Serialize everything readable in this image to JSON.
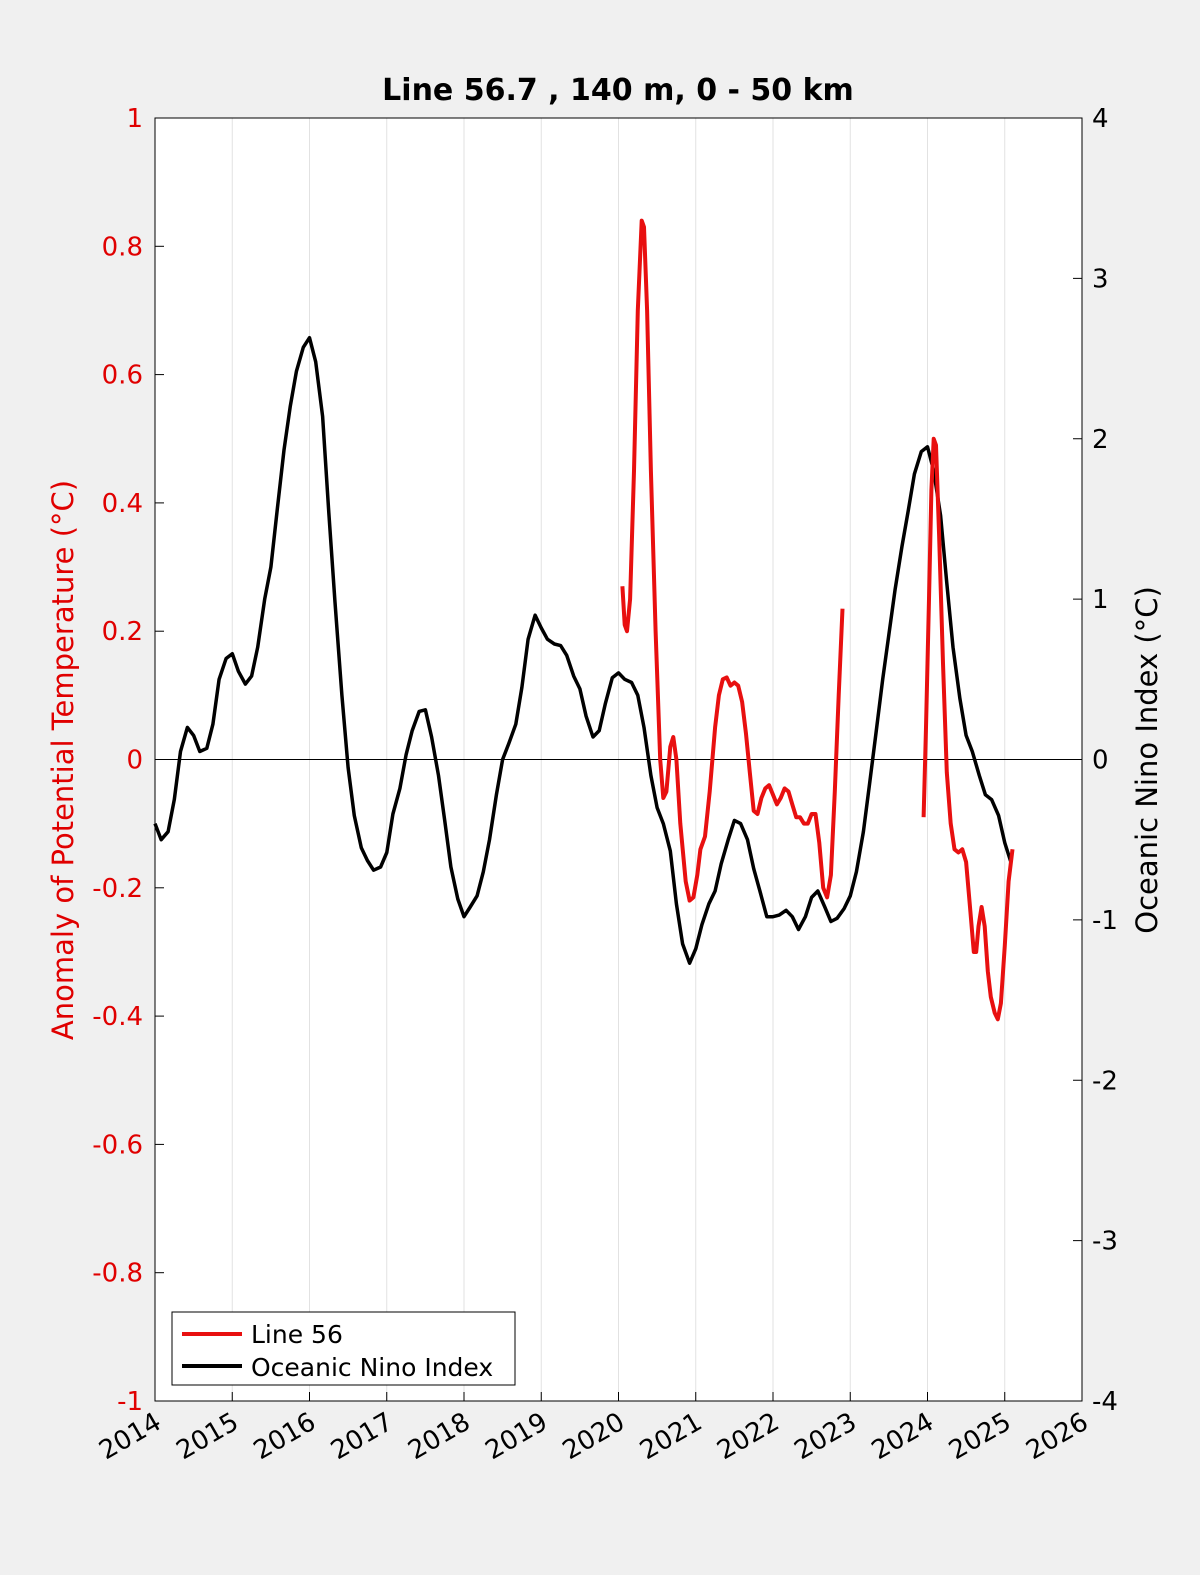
{
  "colors": {
    "background": "#f0f0f0",
    "plot_background": "#ffffff",
    "left_axis": "#e00000",
    "right_axis": "#000000",
    "line56": "#e81010",
    "oni": "#000000",
    "grid": "#e2e2e2"
  },
  "chart_data": {
    "type": "line",
    "title": "Line 56.7 , 140 m, 0 - 50 km",
    "xlabel": "",
    "ylabel_left": "Anomaly of Potential Temperature (°C)",
    "ylabel_right": "Oceanic Nino Index (°C)",
    "x_range": [
      2014,
      2026
    ],
    "x_ticks": [
      2014,
      2015,
      2016,
      2017,
      2018,
      2019,
      2020,
      2021,
      2022,
      2023,
      2024,
      2025,
      2026
    ],
    "y_left_range": [
      -1,
      1
    ],
    "y_left_ticks": [
      -1,
      -0.8,
      -0.6,
      -0.4,
      -0.2,
      0,
      0.2,
      0.4,
      0.6,
      0.8,
      1
    ],
    "y_left_tick_labels": [
      "-1",
      "-0.8",
      "-0.6",
      "-0.4",
      "-0.2",
      "0",
      "0.2",
      "0.4",
      "0.6",
      "0.8",
      "1"
    ],
    "y_right_range": [
      -4,
      4
    ],
    "y_right_ticks": [
      -4,
      -3,
      -2,
      -1,
      0,
      1,
      2,
      3,
      4
    ],
    "y_right_tick_labels": [
      "-4",
      "-3",
      "-2",
      "-1",
      "0",
      "1",
      "2",
      "3",
      "4"
    ],
    "grid": "vertical",
    "zero_line": true,
    "legend_position": "bottom-left",
    "series": [
      {
        "name": "Line 56",
        "axis": "left",
        "segments": [
          [
            [
              2020.05,
              0.27
            ],
            [
              2020.08,
              0.21
            ],
            [
              2020.11,
              0.2
            ],
            [
              2020.15,
              0.25
            ],
            [
              2020.2,
              0.45
            ],
            [
              2020.25,
              0.7
            ],
            [
              2020.3,
              0.84
            ],
            [
              2020.33,
              0.83
            ],
            [
              2020.37,
              0.7
            ],
            [
              2020.42,
              0.45
            ],
            [
              2020.48,
              0.2
            ],
            [
              2020.54,
              0.0
            ],
            [
              2020.58,
              -0.06
            ],
            [
              2020.62,
              -0.05
            ],
            [
              2020.67,
              0.02
            ],
            [
              2020.71,
              0.035
            ],
            [
              2020.75,
              0.0
            ],
            [
              2020.8,
              -0.1
            ],
            [
              2020.87,
              -0.19
            ],
            [
              2020.92,
              -0.22
            ],
            [
              2020.97,
              -0.215
            ],
            [
              2021.02,
              -0.18
            ],
            [
              2021.06,
              -0.14
            ],
            [
              2021.12,
              -0.12
            ],
            [
              2021.18,
              -0.05
            ],
            [
              2021.25,
              0.05
            ],
            [
              2021.3,
              0.1
            ],
            [
              2021.35,
              0.125
            ],
            [
              2021.4,
              0.128
            ],
            [
              2021.45,
              0.115
            ],
            [
              2021.5,
              0.12
            ],
            [
              2021.55,
              0.115
            ],
            [
              2021.6,
              0.09
            ],
            [
              2021.65,
              0.04
            ],
            [
              2021.7,
              -0.02
            ],
            [
              2021.75,
              -0.08
            ],
            [
              2021.8,
              -0.085
            ],
            [
              2021.85,
              -0.06
            ],
            [
              2021.9,
              -0.045
            ],
            [
              2021.95,
              -0.04
            ],
            [
              2022.0,
              -0.055
            ],
            [
              2022.05,
              -0.07
            ],
            [
              2022.1,
              -0.06
            ],
            [
              2022.15,
              -0.045
            ],
            [
              2022.2,
              -0.05
            ],
            [
              2022.25,
              -0.07
            ],
            [
              2022.3,
              -0.09
            ],
            [
              2022.35,
              -0.09
            ],
            [
              2022.4,
              -0.1
            ],
            [
              2022.45,
              -0.1
            ],
            [
              2022.5,
              -0.085
            ],
            [
              2022.55,
              -0.085
            ],
            [
              2022.6,
              -0.13
            ],
            [
              2022.65,
              -0.2
            ],
            [
              2022.7,
              -0.215
            ],
            [
              2022.75,
              -0.18
            ],
            [
              2022.8,
              -0.05
            ],
            [
              2022.85,
              0.1
            ],
            [
              2022.9,
              0.235
            ]
          ],
          [
            [
              2023.95,
              -0.09
            ],
            [
              2023.98,
              0.05
            ],
            [
              2024.02,
              0.25
            ],
            [
              2024.05,
              0.42
            ],
            [
              2024.08,
              0.5
            ],
            [
              2024.11,
              0.49
            ],
            [
              2024.15,
              0.35
            ],
            [
              2024.2,
              0.15
            ],
            [
              2024.25,
              -0.02
            ],
            [
              2024.3,
              -0.1
            ],
            [
              2024.35,
              -0.14
            ],
            [
              2024.4,
              -0.145
            ],
            [
              2024.45,
              -0.14
            ],
            [
              2024.5,
              -0.16
            ],
            [
              2024.55,
              -0.23
            ],
            [
              2024.6,
              -0.3
            ],
            [
              2024.63,
              -0.3
            ],
            [
              2024.66,
              -0.26
            ],
            [
              2024.7,
              -0.23
            ],
            [
              2024.74,
              -0.26
            ],
            [
              2024.78,
              -0.33
            ],
            [
              2024.82,
              -0.37
            ],
            [
              2024.87,
              -0.395
            ],
            [
              2024.91,
              -0.405
            ],
            [
              2024.95,
              -0.38
            ],
            [
              2025.0,
              -0.29
            ],
            [
              2025.05,
              -0.19
            ],
            [
              2025.1,
              -0.14
            ]
          ]
        ]
      },
      {
        "name": "Oceanic Nino Index",
        "axis": "right",
        "points": [
          [
            2014.0,
            -0.4
          ],
          [
            2014.08,
            -0.5
          ],
          [
            2014.17,
            -0.45
          ],
          [
            2014.25,
            -0.25
          ],
          [
            2014.33,
            0.05
          ],
          [
            2014.42,
            0.2
          ],
          [
            2014.5,
            0.15
          ],
          [
            2014.58,
            0.05
          ],
          [
            2014.67,
            0.07
          ],
          [
            2014.75,
            0.22
          ],
          [
            2014.83,
            0.5
          ],
          [
            2014.92,
            0.63
          ],
          [
            2015.0,
            0.66
          ],
          [
            2015.08,
            0.55
          ],
          [
            2015.17,
            0.47
          ],
          [
            2015.25,
            0.52
          ],
          [
            2015.33,
            0.7
          ],
          [
            2015.42,
            1.0
          ],
          [
            2015.5,
            1.2
          ],
          [
            2015.58,
            1.55
          ],
          [
            2015.67,
            1.93
          ],
          [
            2015.75,
            2.2
          ],
          [
            2015.83,
            2.42
          ],
          [
            2015.92,
            2.57
          ],
          [
            2016.0,
            2.63
          ],
          [
            2016.08,
            2.48
          ],
          [
            2016.17,
            2.14
          ],
          [
            2016.25,
            1.54
          ],
          [
            2016.33,
            0.98
          ],
          [
            2016.42,
            0.4
          ],
          [
            2016.5,
            -0.05
          ],
          [
            2016.58,
            -0.35
          ],
          [
            2016.67,
            -0.55
          ],
          [
            2016.75,
            -0.63
          ],
          [
            2016.83,
            -0.69
          ],
          [
            2016.92,
            -0.67
          ],
          [
            2017.0,
            -0.58
          ],
          [
            2017.08,
            -0.34
          ],
          [
            2017.17,
            -0.18
          ],
          [
            2017.25,
            0.03
          ],
          [
            2017.33,
            0.18
          ],
          [
            2017.42,
            0.3
          ],
          [
            2017.5,
            0.31
          ],
          [
            2017.58,
            0.14
          ],
          [
            2017.67,
            -0.1
          ],
          [
            2017.75,
            -0.38
          ],
          [
            2017.83,
            -0.67
          ],
          [
            2017.92,
            -0.87
          ],
          [
            2018.0,
            -0.98
          ],
          [
            2018.08,
            -0.92
          ],
          [
            2018.17,
            -0.85
          ],
          [
            2018.25,
            -0.7
          ],
          [
            2018.33,
            -0.5
          ],
          [
            2018.42,
            -0.22
          ],
          [
            2018.5,
            0.0
          ],
          [
            2018.58,
            0.1
          ],
          [
            2018.67,
            0.22
          ],
          [
            2018.75,
            0.45
          ],
          [
            2018.83,
            0.75
          ],
          [
            2018.92,
            0.9
          ],
          [
            2019.0,
            0.82
          ],
          [
            2019.08,
            0.75
          ],
          [
            2019.17,
            0.72
          ],
          [
            2019.25,
            0.71
          ],
          [
            2019.33,
            0.65
          ],
          [
            2019.42,
            0.52
          ],
          [
            2019.5,
            0.44
          ],
          [
            2019.58,
            0.27
          ],
          [
            2019.67,
            0.14
          ],
          [
            2019.75,
            0.18
          ],
          [
            2019.83,
            0.35
          ],
          [
            2019.92,
            0.51
          ],
          [
            2020.0,
            0.54
          ],
          [
            2020.08,
            0.5
          ],
          [
            2020.17,
            0.48
          ],
          [
            2020.25,
            0.4
          ],
          [
            2020.33,
            0.2
          ],
          [
            2020.42,
            -0.1
          ],
          [
            2020.5,
            -0.3
          ],
          [
            2020.58,
            -0.4
          ],
          [
            2020.67,
            -0.57
          ],
          [
            2020.75,
            -0.9
          ],
          [
            2020.83,
            -1.15
          ],
          [
            2020.92,
            -1.27
          ],
          [
            2021.0,
            -1.18
          ],
          [
            2021.08,
            -1.03
          ],
          [
            2021.17,
            -0.9
          ],
          [
            2021.25,
            -0.82
          ],
          [
            2021.33,
            -0.65
          ],
          [
            2021.42,
            -0.5
          ],
          [
            2021.5,
            -0.38
          ],
          [
            2021.58,
            -0.4
          ],
          [
            2021.67,
            -0.5
          ],
          [
            2021.75,
            -0.68
          ],
          [
            2021.83,
            -0.82
          ],
          [
            2021.92,
            -0.98
          ],
          [
            2022.0,
            -0.98
          ],
          [
            2022.08,
            -0.97
          ],
          [
            2022.17,
            -0.94
          ],
          [
            2022.25,
            -0.98
          ],
          [
            2022.33,
            -1.06
          ],
          [
            2022.42,
            -0.98
          ],
          [
            2022.5,
            -0.86
          ],
          [
            2022.58,
            -0.82
          ],
          [
            2022.67,
            -0.92
          ],
          [
            2022.75,
            -1.01
          ],
          [
            2022.83,
            -0.99
          ],
          [
            2022.92,
            -0.93
          ],
          [
            2023.0,
            -0.85
          ],
          [
            2023.08,
            -0.7
          ],
          [
            2023.17,
            -0.45
          ],
          [
            2023.25,
            -0.15
          ],
          [
            2023.33,
            0.15
          ],
          [
            2023.42,
            0.5
          ],
          [
            2023.5,
            0.78
          ],
          [
            2023.58,
            1.06
          ],
          [
            2023.67,
            1.33
          ],
          [
            2023.75,
            1.55
          ],
          [
            2023.83,
            1.78
          ],
          [
            2023.92,
            1.92
          ],
          [
            2024.0,
            1.95
          ],
          [
            2024.08,
            1.8
          ],
          [
            2024.17,
            1.52
          ],
          [
            2024.25,
            1.1
          ],
          [
            2024.33,
            0.7
          ],
          [
            2024.42,
            0.38
          ],
          [
            2024.5,
            0.15
          ],
          [
            2024.58,
            0.05
          ],
          [
            2024.67,
            -0.1
          ],
          [
            2024.75,
            -0.22
          ],
          [
            2024.83,
            -0.25
          ],
          [
            2024.92,
            -0.35
          ],
          [
            2025.0,
            -0.52
          ],
          [
            2025.08,
            -0.64
          ]
        ]
      }
    ]
  }
}
